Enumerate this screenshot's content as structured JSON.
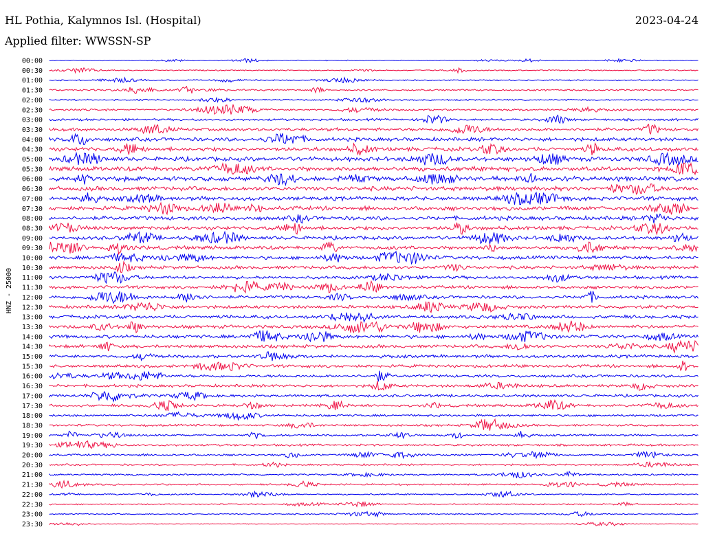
{
  "header": {
    "station": "HL Pothia, Kalymnos Isl. (Hospital)",
    "date": "2023-04-24",
    "filter_label": "Applied filter: WWSSN-SP"
  },
  "chart_data": {
    "type": "line",
    "title": "HL Pothia, Kalymnos Isl. (Hospital)",
    "subtitle": "Applied filter: WWSSN-SP",
    "ylabel": "HNZ - 25000",
    "xlabel": "",
    "row_labels": [
      "00:00",
      "00:30",
      "01:00",
      "01:30",
      "02:00",
      "02:30",
      "03:00",
      "03:30",
      "04:00",
      "04:30",
      "05:00",
      "05:30",
      "06:00",
      "06:30",
      "07:00",
      "07:30",
      "08:00",
      "08:30",
      "09:00",
      "09:30",
      "10:00",
      "10:30",
      "11:00",
      "11:30",
      "12:00",
      "12:30",
      "13:00",
      "13:30",
      "14:00",
      "14:30",
      "15:00",
      "15:30",
      "16:00",
      "16:30",
      "17:00",
      "17:30",
      "18:00",
      "18:30",
      "19:00",
      "19:30",
      "20:00",
      "20:30",
      "21:00",
      "21:30",
      "22:00",
      "22:30",
      "23:00",
      "23:30"
    ],
    "row_amplitude": [
      0.6,
      0.8,
      0.9,
      1.2,
      1.0,
      1.4,
      1.6,
      2.2,
      2.6,
      2.8,
      3.0,
      3.2,
      3.3,
      3.0,
      2.8,
      2.9,
      2.8,
      2.7,
      2.5,
      2.5,
      2.4,
      2.3,
      2.2,
      2.2,
      2.2,
      2.3,
      2.4,
      2.4,
      2.4,
      2.3,
      2.2,
      2.1,
      2.0,
      2.0,
      1.9,
      1.8,
      1.6,
      1.5,
      1.4,
      1.5,
      1.4,
      1.3,
      1.2,
      1.2,
      1.0,
      0.9,
      0.8,
      0.5
    ],
    "colors": {
      "even": "#0000ee",
      "odd": "#ee1144"
    },
    "grid": false
  }
}
